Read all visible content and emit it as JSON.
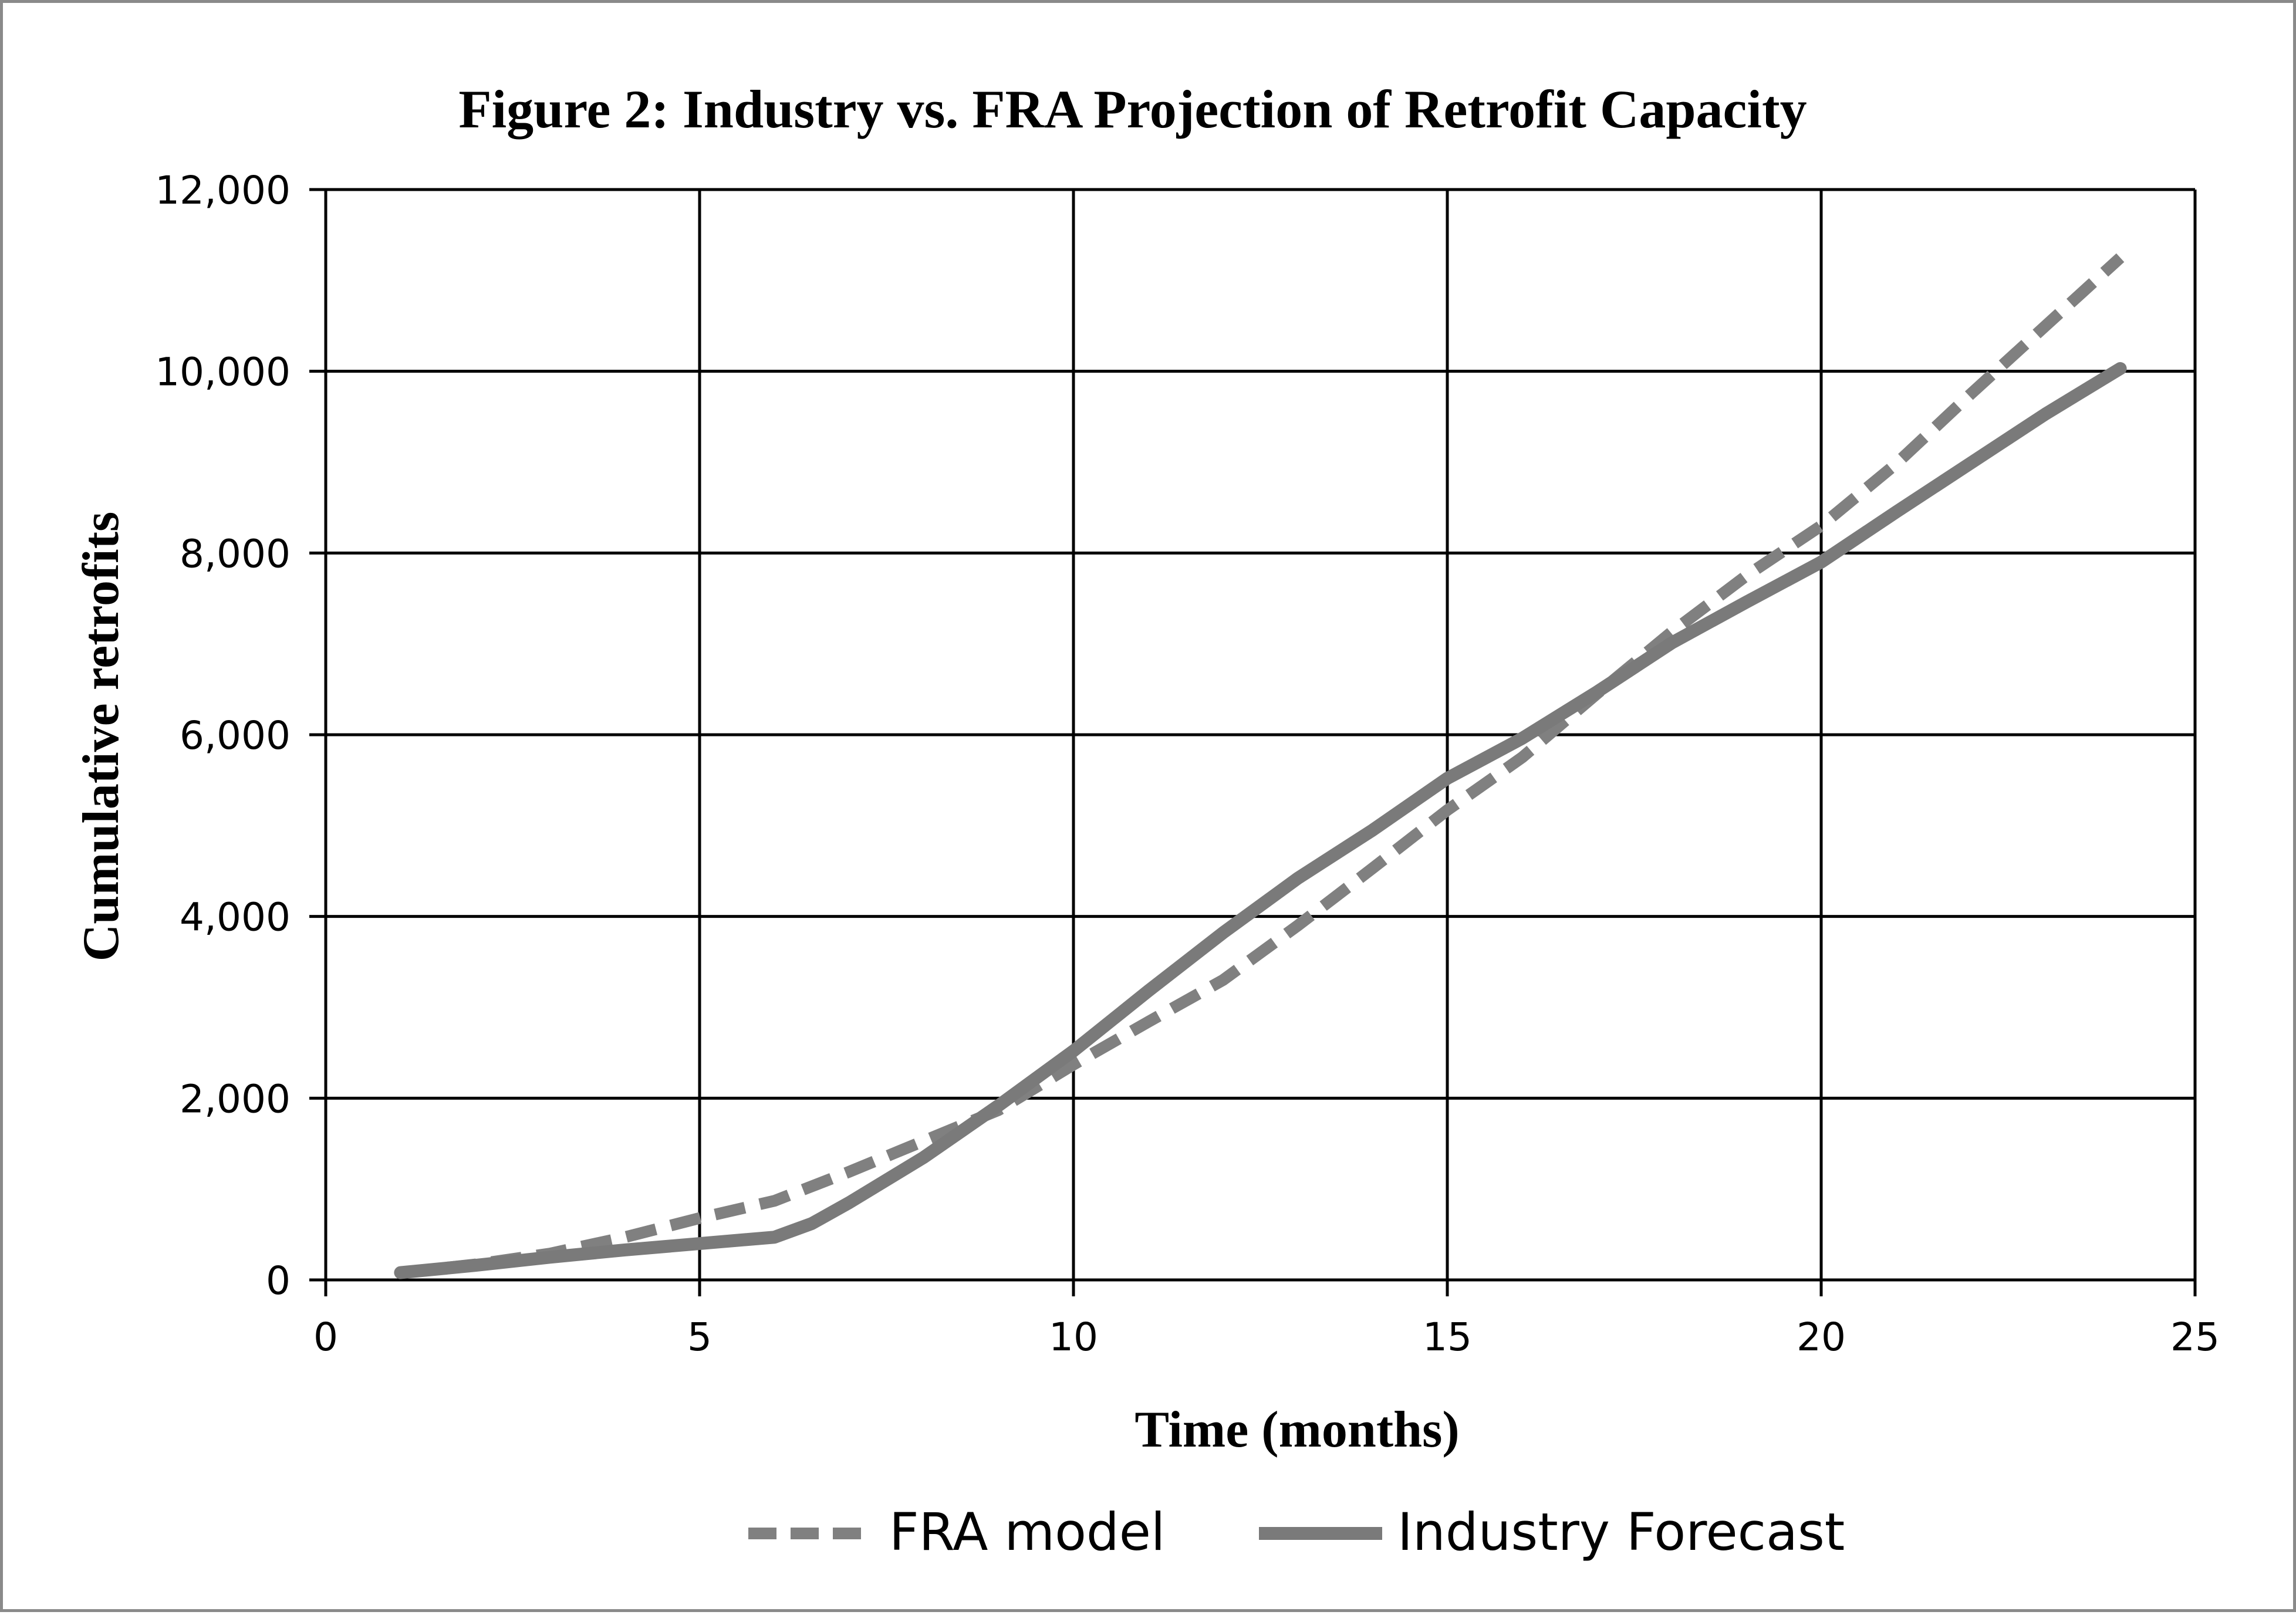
{
  "chart_data": {
    "type": "line",
    "title": "Figure 2: Industry vs. FRA Projection of Retrofit Capacity",
    "xlabel": "Time (months)",
    "ylabel": "Cumulative retrofits",
    "xlim": [
      0,
      25
    ],
    "ylim": [
      0,
      12000
    ],
    "x_ticks": [
      0,
      5,
      10,
      15,
      20,
      25
    ],
    "y_ticks": [
      0,
      2000,
      4000,
      6000,
      8000,
      10000,
      12000
    ],
    "x_tick_labels": [
      "0",
      "5",
      "10",
      "15",
      "20",
      "25"
    ],
    "y_tick_labels": [
      "0",
      "2,000",
      "4,000",
      "6,000",
      "8,000",
      "10,000",
      "12,000"
    ],
    "grid": true,
    "legend_position": "bottom",
    "series": [
      {
        "name": "FRA model",
        "style": "dashed",
        "color": "#808080",
        "x": [
          1,
          2,
          3,
          4,
          5,
          6,
          7,
          8,
          9,
          10,
          11,
          12,
          13,
          14,
          15,
          16,
          17,
          18,
          19,
          20,
          21,
          22,
          23,
          24
        ],
        "y": [
          80,
          170,
          290,
          470,
          680,
          870,
          1190,
          1530,
          1870,
          2370,
          2840,
          3300,
          3900,
          4530,
          5170,
          5750,
          6450,
          7130,
          7750,
          8300,
          8980,
          9750,
          10500,
          11250
        ]
      },
      {
        "name": "Industry Forecast",
        "style": "solid",
        "color": "#7a7a7a",
        "x": [
          1,
          2,
          3,
          4,
          5,
          6,
          6.5,
          7,
          8,
          9,
          10,
          11,
          12,
          13,
          14,
          15,
          16,
          17,
          18,
          19,
          20,
          21,
          22,
          23,
          24
        ],
        "y": [
          80,
          160,
          250,
          330,
          400,
          470,
          620,
          850,
          1350,
          1920,
          2520,
          3180,
          3820,
          4420,
          4950,
          5520,
          5960,
          6470,
          7010,
          7460,
          7900,
          8450,
          8990,
          9530,
          10030
        ]
      }
    ]
  }
}
